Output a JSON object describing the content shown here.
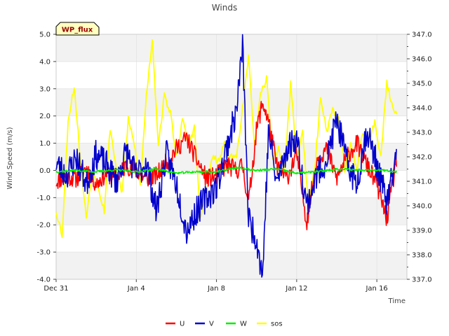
{
  "chart_data": {
    "type": "line",
    "title": "Winds",
    "xlabel": "Time",
    "ylabel": "Wind Speed (m/s)",
    "y2label": "",
    "annotation": "WP_flux",
    "x_range_days": [
      0,
      17.5
    ],
    "x_ticks": [
      {
        "day": 0,
        "label": "Dec 31"
      },
      {
        "day": 4,
        "label": "Jan 4"
      },
      {
        "day": 8,
        "label": "Jan 8"
      },
      {
        "day": 12,
        "label": "Jan 12"
      },
      {
        "day": 16,
        "label": "Jan 16"
      }
    ],
    "ylim": [
      -4.0,
      5.0
    ],
    "y_ticks": [
      "-4.0",
      "-3.0",
      "-2.0",
      "-1.0",
      "0.0",
      "1.0",
      "2.0",
      "3.0",
      "4.0",
      "5.0"
    ],
    "y2lim": [
      337.0,
      347.0
    ],
    "y2_ticks": [
      "337.0",
      "338.0",
      "339.0",
      "340.0",
      "341.0",
      "342.0",
      "343.0",
      "344.0",
      "345.0",
      "346.0",
      "347.0"
    ],
    "legend_position": "bottom-center",
    "series": [
      {
        "name": "U",
        "color": "#ff0000",
        "axis": "left",
        "x": [
          0.0,
          0.5,
          1.0,
          1.5,
          2.0,
          2.5,
          3.0,
          3.5,
          4.0,
          4.5,
          5.0,
          5.5,
          6.0,
          6.5,
          7.0,
          7.5,
          8.0,
          8.5,
          9.0,
          9.3,
          9.6,
          10.0,
          10.3,
          10.6,
          11.0,
          11.5,
          12.0,
          12.5,
          13.0,
          13.5,
          14.0,
          14.5,
          15.0,
          15.5,
          16.0,
          16.5,
          17.0
        ],
        "y": [
          -0.4,
          -0.2,
          -0.3,
          0.1,
          -0.5,
          -0.1,
          -0.3,
          0.2,
          0.0,
          -0.3,
          -0.2,
          0.3,
          0.8,
          1.2,
          0.4,
          -0.3,
          -0.2,
          0.2,
          0.0,
          0.2,
          -1.2,
          1.5,
          2.5,
          1.8,
          0.2,
          -0.3,
          0.6,
          -1.9,
          0.4,
          0.8,
          -0.3,
          0.5,
          1.0,
          0.2,
          -0.5,
          -1.8,
          0.5
        ]
      },
      {
        "name": "V",
        "color": "#0000cc",
        "axis": "left",
        "x": [
          0.0,
          0.5,
          1.0,
          1.5,
          2.0,
          2.5,
          3.0,
          3.5,
          4.0,
          4.5,
          5.0,
          5.5,
          6.0,
          6.5,
          7.0,
          7.5,
          8.0,
          8.5,
          9.0,
          9.3,
          9.6,
          10.0,
          10.3,
          10.6,
          11.0,
          11.5,
          12.0,
          12.5,
          13.0,
          13.5,
          14.0,
          14.5,
          15.0,
          15.5,
          16.0,
          16.5,
          17.0
        ],
        "y": [
          0.3,
          -0.2,
          0.5,
          -0.5,
          0.6,
          0.2,
          -0.4,
          0.7,
          -0.2,
          0.3,
          -1.5,
          0.6,
          -0.5,
          -2.2,
          -1.5,
          -1.0,
          -0.6,
          0.8,
          2.2,
          4.6,
          -1.8,
          -2.5,
          -3.9,
          1.5,
          -0.5,
          0.8,
          1.2,
          -1.3,
          -0.2,
          0.4,
          1.9,
          0.3,
          -0.5,
          1.5,
          0.2,
          -1.2,
          0.6
        ]
      },
      {
        "name": "W",
        "color": "#00ee00",
        "axis": "left",
        "x": [
          0.0,
          1.0,
          2.0,
          3.0,
          4.0,
          5.0,
          6.0,
          7.0,
          8.0,
          9.0,
          9.5,
          10.0,
          11.0,
          12.0,
          13.0,
          14.0,
          15.0,
          16.0,
          17.0
        ],
        "y": [
          -0.05,
          0.0,
          -0.05,
          0.02,
          -0.05,
          0.05,
          -0.1,
          -0.05,
          -0.05,
          0.1,
          0.05,
          0.0,
          0.05,
          -0.1,
          -0.05,
          0.05,
          0.02,
          0.02,
          -0.05
        ]
      },
      {
        "name": "sos",
        "color": "#ffff00",
        "axis": "right",
        "x": [
          0.0,
          0.3,
          0.6,
          0.9,
          1.2,
          1.5,
          1.8,
          2.1,
          2.4,
          2.7,
          3.0,
          3.3,
          3.6,
          3.9,
          4.2,
          4.5,
          4.8,
          5.1,
          5.4,
          5.7,
          6.0,
          6.3,
          6.6,
          6.9,
          7.2,
          7.5,
          7.8,
          8.1,
          8.4,
          8.7,
          9.0,
          9.3,
          9.6,
          9.9,
          10.2,
          10.5,
          10.8,
          11.1,
          11.4,
          11.7,
          12.0,
          12.3,
          12.6,
          12.9,
          13.2,
          13.5,
          13.8,
          14.1,
          14.4,
          14.7,
          15.0,
          15.3,
          15.6,
          15.9,
          16.2,
          16.5,
          16.8,
          17.0
        ],
        "y": [
          339.8,
          338.8,
          343.5,
          344.9,
          342.0,
          339.5,
          341.5,
          340.8,
          339.8,
          343.2,
          341.5,
          340.5,
          343.5,
          342.5,
          340.8,
          344.5,
          346.8,
          342.5,
          344.5,
          343.8,
          342.0,
          343.5,
          342.5,
          343.2,
          339.5,
          340.5,
          342.0,
          341.8,
          342.5,
          342.0,
          342.0,
          344.0,
          346.0,
          342.5,
          344.5,
          345.2,
          342.0,
          342.3,
          341.5,
          345.0,
          342.0,
          343.0,
          340.0,
          341.5,
          344.5,
          343.0,
          344.0,
          343.5,
          341.5,
          342.5,
          341.5,
          343.0,
          342.5,
          343.5,
          342.0,
          345.0,
          344.0,
          343.8
        ]
      }
    ]
  }
}
